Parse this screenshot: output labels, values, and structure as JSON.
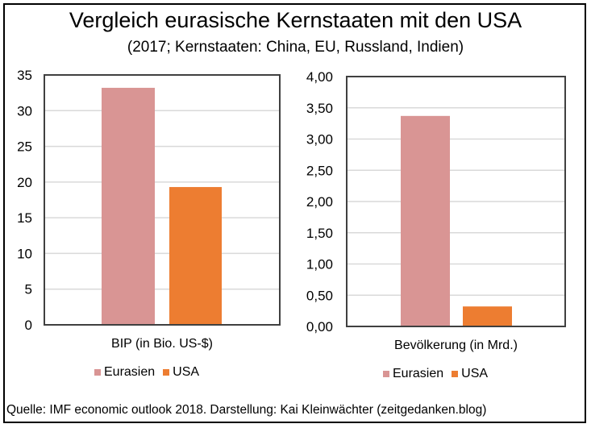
{
  "title": "Vergleich eurasische Kernstaaten mit den USA",
  "subtitle": "(2017; Kernstaaten: China, EU, Russland, Indien)",
  "source": "Quelle: IMF economic outlook 2018. Darstellung: Kai Kleinwächter (zeitgedanken.blog)",
  "colors": {
    "Eurasien": "#d99594",
    "USA": "#ed7d31",
    "grid": "#d9d9d9",
    "axis": "#404040"
  },
  "chart_data": [
    {
      "type": "bar",
      "title": "",
      "xlabel": "BIP (in Bio. US-$)",
      "ylabel": "",
      "categories": [
        "BIP (in Bio. US-$)"
      ],
      "series": [
        {
          "name": "Eurasien",
          "values": [
            33.2
          ]
        },
        {
          "name": "USA",
          "values": [
            19.3
          ]
        }
      ],
      "ylim": [
        0,
        35
      ],
      "yticks": [
        0,
        5,
        10,
        15,
        20,
        25,
        30,
        35
      ],
      "ytick_labels": [
        "0",
        "5",
        "10",
        "15",
        "20",
        "25",
        "30",
        "35"
      ],
      "grid": true,
      "legend": [
        "Eurasien",
        "USA"
      ],
      "legend_position": "bottom"
    },
    {
      "type": "bar",
      "title": "",
      "xlabel": "Bevölkerung (in Mrd.)",
      "ylabel": "",
      "categories": [
        "Bevölkerung (in Mrd.)"
      ],
      "series": [
        {
          "name": "Eurasien",
          "values": [
            3.37
          ]
        },
        {
          "name": "USA",
          "values": [
            0.32
          ]
        }
      ],
      "ylim": [
        0,
        4
      ],
      "yticks": [
        0,
        0.5,
        1,
        1.5,
        2,
        2.5,
        3,
        3.5,
        4
      ],
      "ytick_labels": [
        "0,00",
        "0,50",
        "1,00",
        "1,50",
        "2,00",
        "2,50",
        "3,00",
        "3,50",
        "4,00"
      ],
      "grid": true,
      "legend": [
        "Eurasien",
        "USA"
      ],
      "legend_position": "bottom"
    }
  ]
}
